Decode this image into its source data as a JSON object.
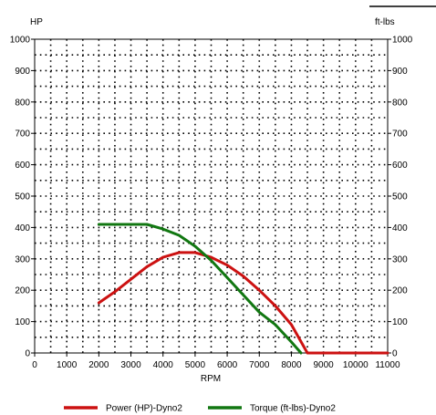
{
  "chart_data": {
    "type": "line",
    "ylabel_left": "HP",
    "ylabel_right": "ft-lbs",
    "xlabel": "RPM",
    "xlim": [
      0,
      11000
    ],
    "ylim": [
      0,
      1000
    ],
    "x_ticks": [
      0,
      1000,
      2000,
      3000,
      4000,
      5000,
      6000,
      7000,
      8000,
      9000,
      10000,
      11000
    ],
    "x_tick_labels": [
      "0",
      "1000",
      "2000",
      "3000",
      "4000",
      "5000",
      "6000",
      "7000",
      "8000",
      "9000",
      "10000",
      "11000"
    ],
    "y_ticks": [
      0,
      100,
      200,
      300,
      400,
      500,
      600,
      700,
      800,
      900,
      1000
    ],
    "y_tick_labels": [
      "0",
      "100",
      "200",
      "300",
      "400",
      "500",
      "600",
      "700",
      "800",
      "900",
      "1000"
    ],
    "grid": true,
    "legend_position": "bottom",
    "series": [
      {
        "name": "Power (HP)-Dyno2",
        "color": "#cc1111",
        "x": [
          2000,
          2500,
          3000,
          3500,
          4000,
          4500,
          5000,
          5500,
          6000,
          6500,
          7000,
          7500,
          8000,
          8500,
          9000,
          10000,
          11000
        ],
        "y": [
          160,
          195,
          235,
          275,
          305,
          320,
          320,
          305,
          280,
          245,
          200,
          150,
          90,
          0,
          0,
          0,
          0
        ]
      },
      {
        "name": "Torque (ft-lbs)-Dyno2",
        "color": "#117711",
        "x": [
          2000,
          2500,
          3000,
          3500,
          4000,
          4500,
          5000,
          5500,
          6000,
          6500,
          7000,
          7500,
          8000,
          8300
        ],
        "y": [
          410,
          410,
          410,
          410,
          395,
          375,
          340,
          295,
          240,
          185,
          130,
          90,
          35,
          0
        ]
      }
    ]
  }
}
